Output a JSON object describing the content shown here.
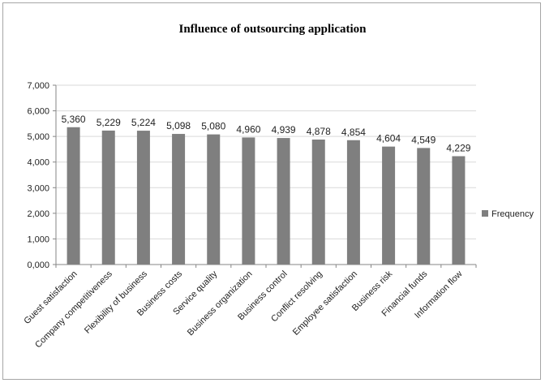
{
  "chart_data": {
    "type": "bar",
    "title": "Influence of outsourcing application",
    "categories": [
      "Guest satisfaction",
      "Company competitiveness",
      "Flexibility of business",
      "Business costs",
      "Service quality",
      "Business organization",
      "Business control",
      "Conflict resolving",
      "Employee satisfaction",
      "Business risk",
      "Financial funds",
      "Information flow"
    ],
    "series": [
      {
        "name": "Frequency",
        "values": [
          5.36,
          5.229,
          5.224,
          5.098,
          5.08,
          4.96,
          4.939,
          4.878,
          4.854,
          4.604,
          4.549,
          4.229
        ],
        "labels": [
          "5,360",
          "5,229",
          "5,224",
          "5,098",
          "5,080",
          "4,960",
          "4,939",
          "4,878",
          "4,854",
          "4,604",
          "4,549",
          "4,229"
        ]
      }
    ],
    "ylim": [
      0,
      7
    ],
    "yticks": [
      0,
      1,
      2,
      3,
      4,
      5,
      6,
      7
    ],
    "ytick_labels": [
      "0,000",
      "1,000",
      "2,000",
      "3,000",
      "4,000",
      "5,000",
      "6,000",
      "7,000"
    ],
    "xlabel": "",
    "ylabel": "",
    "grid": true,
    "legend": "right",
    "bar_color": "#7f7f7f",
    "grid_color": "#d9d9d9"
  }
}
